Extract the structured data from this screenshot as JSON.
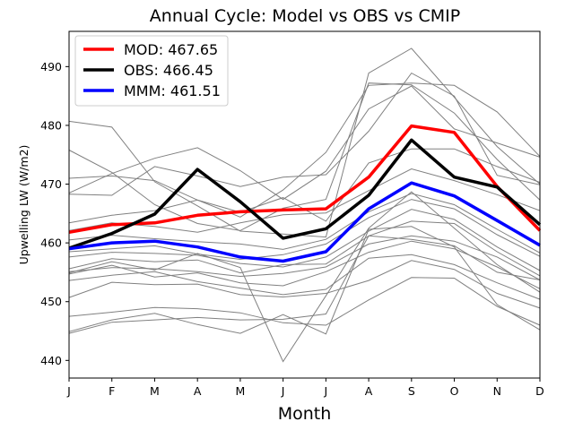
{
  "chart_data": {
    "type": "line",
    "title": "Annual Cycle: Model vs OBS vs CMIP",
    "xlabel": "Month",
    "ylabel": "Upwelling LW (W/m2)",
    "categories": [
      "J",
      "F",
      "M",
      "A",
      "M",
      "J",
      "J",
      "A",
      "S",
      "O",
      "N",
      "D"
    ],
    "yticks": [
      440,
      450,
      460,
      470,
      480,
      490
    ],
    "ylim": [
      437,
      496
    ],
    "series": [
      {
        "name": "MOD: 467.65",
        "color": "#ff0000",
        "values": [
          461.8,
          463.1,
          463.4,
          464.7,
          465.3,
          465.6,
          465.8,
          471.2,
          479.9,
          478.8,
          469.6,
          462.1
        ]
      },
      {
        "name": "OBS: 466.45",
        "color": "#000000",
        "values": [
          459.1,
          461.6,
          464.9,
          472.5,
          467.0,
          460.8,
          462.4,
          468.1,
          477.5,
          471.2,
          469.5,
          463.1
        ]
      },
      {
        "name": "MMM: 461.51",
        "color": "#0000ff",
        "values": [
          459.0,
          460.0,
          460.3,
          459.3,
          457.6,
          456.9,
          458.5,
          465.8,
          470.2,
          468.0,
          463.8,
          459.6
        ]
      }
    ],
    "cmip_members": [
      [
        480.7,
        479.7,
        470.4,
        466.3,
        462.0,
        461.5,
        461.0,
        488.9,
        493.1,
        484.8,
        476.4,
        470.0
      ],
      [
        475.8,
        472.0,
        466.5,
        463.3,
        462.1,
        465.9,
        467.4,
        487.2,
        486.9,
        482.1,
        474.2,
        467.3
      ],
      [
        471.0,
        471.4,
        470.6,
        467.3,
        464.4,
        469.0,
        475.4,
        486.8,
        487.2,
        486.8,
        482.3,
        474.7
      ],
      [
        468.5,
        471.8,
        474.4,
        476.2,
        472.3,
        467.4,
        472.2,
        482.8,
        486.7,
        479.4,
        477.0,
        474.6
      ],
      [
        468.3,
        468.1,
        473.0,
        471.4,
        469.6,
        471.2,
        471.6,
        479.0,
        488.9,
        485.0,
        471.5,
        469.9
      ],
      [
        463.4,
        464.7,
        465.5,
        467.3,
        465.2,
        467.7,
        463.7,
        473.6,
        476.0,
        476.0,
        473.0,
        470.3
      ],
      [
        462.1,
        463.4,
        462.8,
        461.8,
        463.4,
        464.8,
        465.1,
        468.9,
        472.6,
        470.6,
        468.2,
        465.5
      ],
      [
        460.5,
        461.3,
        460.7,
        460.2,
        459.8,
        458.9,
        460.6,
        465.3,
        468.4,
        466.5,
        462.3,
        458.3
      ],
      [
        458.5,
        459.0,
        459.5,
        458.1,
        457.2,
        458.0,
        459.8,
        464.3,
        467.4,
        465.8,
        461.4,
        457.7
      ],
      [
        457.6,
        458.4,
        458.2,
        457.9,
        456.5,
        455.9,
        457.6,
        462.0,
        465.7,
        464.0,
        459.3,
        455.3
      ],
      [
        455.6,
        457.3,
        456.8,
        457.1,
        454.9,
        456.3,
        456.4,
        461.2,
        463.7,
        463.3,
        458.5,
        454.4
      ],
      [
        455.1,
        455.8,
        455.6,
        455.1,
        454.3,
        454.8,
        455.9,
        459.8,
        461.2,
        460.3,
        457.6,
        453.7
      ],
      [
        454.7,
        456.2,
        454.2,
        454.9,
        453.2,
        452.7,
        455.1,
        458.4,
        460.3,
        459.0,
        455.9,
        452.2
      ],
      [
        453.6,
        454.5,
        455.1,
        453.4,
        452.3,
        451.2,
        452.1,
        457.4,
        458.0,
        456.3,
        453.2,
        450.4
      ],
      [
        450.7,
        453.3,
        452.9,
        453.0,
        451.2,
        450.8,
        451.4,
        453.6,
        457.0,
        455.5,
        451.4,
        448.9
      ],
      [
        447.5,
        448.2,
        449.0,
        448.8,
        448.1,
        446.4,
        446.0,
        450.3,
        454.1,
        454.0,
        449.2,
        446.0
      ],
      [
        444.6,
        446.5,
        446.9,
        447.3,
        446.9,
        447.0,
        447.9,
        461.2,
        460.6,
        459.5,
        455.0,
        453.7
      ],
      [
        444.9,
        446.9,
        448.0,
        446.1,
        444.6,
        447.8,
        444.5,
        462.3,
        462.8,
        459.3,
        449.5,
        445.2
      ],
      [
        454.9,
        456.8,
        455.4,
        458.2,
        455.8,
        439.8,
        451.0,
        462.5,
        468.7,
        462.5,
        456.3,
        451.6
      ]
    ],
    "cmip_color": "#808080",
    "legend_position": "upper-left"
  }
}
